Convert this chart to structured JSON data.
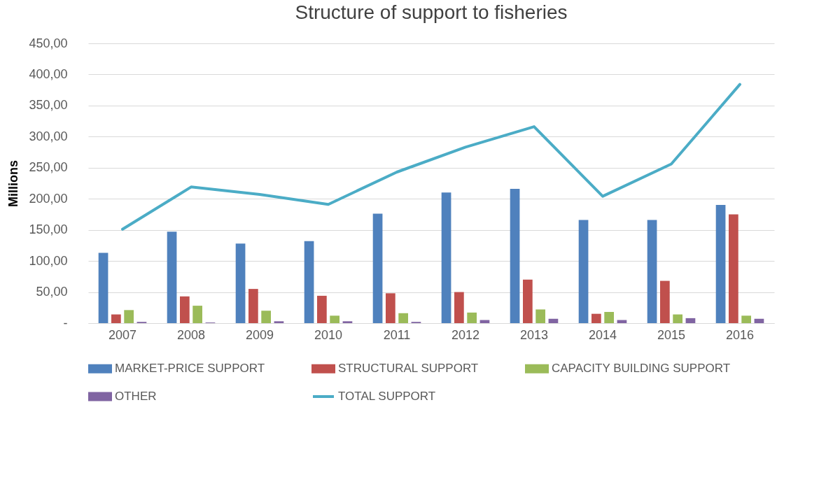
{
  "chart_data": {
    "type": "bar",
    "title": "Structure of support to fisheries",
    "ylabel": "Millions",
    "categories": [
      "2007",
      "2008",
      "2009",
      "2010",
      "2011",
      "2012",
      "2013",
      "2014",
      "2015",
      "2016"
    ],
    "series": [
      {
        "name": "MARKET-PRICE SUPPORT",
        "color": "#4f81bd",
        "values": [
          113,
          147,
          128,
          132,
          176,
          210,
          216,
          166,
          166,
          190
        ]
      },
      {
        "name": "STRUCTURAL SUPPORT",
        "color": "#c0504d",
        "values": [
          14,
          43,
          55,
          44,
          48,
          50,
          70,
          15,
          68,
          175
        ]
      },
      {
        "name": "CAPACITY BUILDING SUPPORT",
        "color": "#9bbb59",
        "values": [
          21,
          28,
          20,
          12,
          16,
          17,
          22,
          18,
          14,
          12
        ]
      },
      {
        "name": "OTHER",
        "color": "#8064a2",
        "values": [
          2,
          1,
          3,
          3,
          2,
          5,
          7,
          5,
          8,
          7
        ]
      },
      {
        "name": "TOTAL SUPPORT",
        "type": "line",
        "color": "#4bacc6",
        "values": [
          151,
          219,
          207,
          191,
          243,
          283,
          316,
          204,
          256,
          384
        ]
      }
    ],
    "ylim": [
      0,
      450
    ],
    "yticks": [
      {
        "value": 0,
        "label": "-"
      },
      {
        "value": 50,
        "label": "50,00"
      },
      {
        "value": 100,
        "label": "100,00"
      },
      {
        "value": 150,
        "label": "150,00"
      },
      {
        "value": 200,
        "label": "200,00"
      },
      {
        "value": 250,
        "label": "250,00"
      },
      {
        "value": 300,
        "label": "300,00"
      },
      {
        "value": 350,
        "label": "350,00"
      },
      {
        "value": 400,
        "label": "400,00"
      },
      {
        "value": 450,
        "label": "450,00"
      }
    ],
    "grid": "y",
    "legend": "bottom"
  }
}
